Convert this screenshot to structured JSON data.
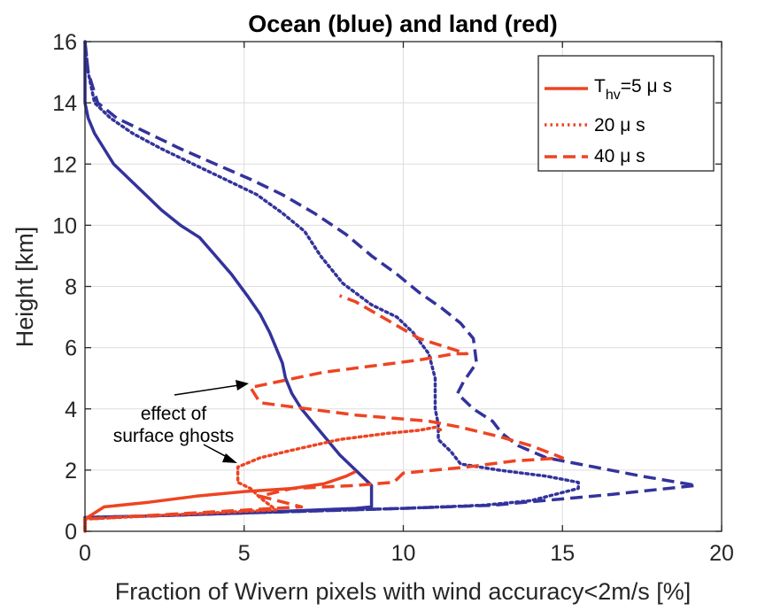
{
  "chart_data": {
    "type": "line",
    "title": "Ocean (blue) and land (red)",
    "xlabel": "Fraction of Wivern pixels with wind accuracy<2m/s [%]",
    "ylabel": "Height [km]",
    "xlim": [
      0,
      20
    ],
    "ylim": [
      0,
      16
    ],
    "xticks": [
      0,
      5,
      10,
      15,
      20
    ],
    "yticks": [
      0,
      2,
      4,
      6,
      8,
      10,
      12,
      14,
      16
    ],
    "xtick_labels": [
      "0",
      "5",
      "10",
      "15",
      "20"
    ],
    "ytick_labels": [
      "0",
      "2",
      "4",
      "6",
      "8",
      "10",
      "12",
      "14",
      "16"
    ],
    "grid": true,
    "legend": {
      "placement": "top-right",
      "entries": [
        {
          "label_main": "T",
          "label_sub": "hv",
          "label_rest": "=5 μ s",
          "style": "solid"
        },
        {
          "label": "20 μ s",
          "style": "dotted"
        },
        {
          "label": "40 μ s",
          "style": "dashed"
        }
      ]
    },
    "annotation": {
      "lines": [
        "effect of",
        "surface ghosts"
      ]
    },
    "colors": {
      "ocean": "#33339c",
      "land": "#ee4422"
    },
    "series": [
      {
        "surface": "ocean",
        "style": "solid",
        "points": [
          [
            0,
            16
          ],
          [
            0,
            15
          ],
          [
            0,
            14
          ],
          [
            0.1,
            13.5
          ],
          [
            0.3,
            13
          ],
          [
            0.6,
            12.5
          ],
          [
            0.9,
            12
          ],
          [
            1.4,
            11.5
          ],
          [
            1.9,
            11
          ],
          [
            2.4,
            10.5
          ],
          [
            3,
            10
          ],
          [
            3.6,
            9.6
          ],
          [
            4.1,
            9
          ],
          [
            4.6,
            8.4
          ],
          [
            5.1,
            7.7
          ],
          [
            5.5,
            7.1
          ],
          [
            5.8,
            6.5
          ],
          [
            6,
            6
          ],
          [
            6.2,
            5.5
          ],
          [
            6.3,
            5
          ],
          [
            6.5,
            4.5
          ],
          [
            6.8,
            4
          ],
          [
            7.2,
            3.5
          ],
          [
            7.6,
            3
          ],
          [
            8,
            2.5
          ],
          [
            8.5,
            2
          ],
          [
            8.9,
            1.6
          ],
          [
            9,
            1.5
          ],
          [
            9,
            1.2
          ],
          [
            9,
            0.8
          ],
          [
            8.5,
            0.75
          ],
          [
            5,
            0.6
          ],
          [
            2,
            0.5
          ],
          [
            0,
            0.45
          ],
          [
            0,
            0
          ]
        ]
      },
      {
        "surface": "ocean",
        "style": "dotted",
        "points": [
          [
            0,
            16
          ],
          [
            0.1,
            15
          ],
          [
            0.3,
            14
          ],
          [
            0.8,
            13.5
          ],
          [
            1.5,
            13
          ],
          [
            2.4,
            12.5
          ],
          [
            3.4,
            12
          ],
          [
            4.4,
            11.5
          ],
          [
            5.4,
            11
          ],
          [
            6.2,
            10.4
          ],
          [
            6.9,
            9.8
          ],
          [
            7.4,
            9
          ],
          [
            8.1,
            8.1
          ],
          [
            9,
            7.4
          ],
          [
            9.8,
            7
          ],
          [
            10.3,
            6.5
          ],
          [
            10.8,
            5.8
          ],
          [
            11,
            5
          ],
          [
            11,
            4
          ],
          [
            11.1,
            3.5
          ],
          [
            11.1,
            3
          ],
          [
            11.5,
            2.6
          ],
          [
            11.8,
            2.2
          ],
          [
            13,
            2
          ],
          [
            14.5,
            1.8
          ],
          [
            15.5,
            1.6
          ],
          [
            15.5,
            1.4
          ],
          [
            14,
            1
          ],
          [
            12.5,
            0.85
          ],
          [
            10,
            0.75
          ],
          [
            5,
            0.6
          ],
          [
            2,
            0.5
          ],
          [
            0,
            0.45
          ],
          [
            0,
            0
          ]
        ]
      },
      {
        "surface": "ocean",
        "style": "dashed",
        "points": [
          [
            0,
            16
          ],
          [
            0.1,
            15
          ],
          [
            0.4,
            14
          ],
          [
            1,
            13.5
          ],
          [
            2,
            13
          ],
          [
            3,
            12.5
          ],
          [
            4.1,
            12
          ],
          [
            5.2,
            11.5
          ],
          [
            6.2,
            11
          ],
          [
            7.2,
            10.4
          ],
          [
            8.2,
            9.7
          ],
          [
            9,
            9
          ],
          [
            9.8,
            8.4
          ],
          [
            10.5,
            7.8
          ],
          [
            11.2,
            7.3
          ],
          [
            11.8,
            6.8
          ],
          [
            12.2,
            6.3
          ],
          [
            12.3,
            5.5
          ],
          [
            11.9,
            4.9
          ],
          [
            11.7,
            4.5
          ],
          [
            12.2,
            4
          ],
          [
            12.8,
            3.6
          ],
          [
            13.1,
            3.2
          ],
          [
            13.6,
            2.8
          ],
          [
            14.5,
            2.4
          ],
          [
            16,
            2.1
          ],
          [
            17.5,
            1.8
          ],
          [
            19.2,
            1.5
          ],
          [
            16.5,
            1.2
          ],
          [
            12.8,
            0.85
          ],
          [
            10,
            0.75
          ],
          [
            5,
            0.6
          ],
          [
            2,
            0.5
          ],
          [
            0,
            0.45
          ],
          [
            0,
            0
          ]
        ]
      },
      {
        "surface": "land",
        "style": "solid",
        "points": [
          [
            0,
            0
          ],
          [
            0,
            0.4
          ],
          [
            0.6,
            0.8
          ],
          [
            2,
            0.95
          ],
          [
            3.5,
            1.15
          ],
          [
            5,
            1.3
          ],
          [
            6.5,
            1.4
          ],
          [
            7.5,
            1.55
          ],
          [
            8.2,
            1.8
          ],
          [
            8.5,
            1.95
          ]
        ]
      },
      {
        "surface": "land",
        "style": "dotted",
        "points": [
          [
            0,
            0
          ],
          [
            0,
            0.4
          ],
          [
            6,
            0.7
          ],
          [
            5.5,
            1.1
          ],
          [
            5.2,
            1.4
          ],
          [
            4.8,
            1.6
          ],
          [
            4.8,
            2.1
          ],
          [
            5.5,
            2.4
          ],
          [
            6.5,
            2.65
          ],
          [
            8,
            3
          ],
          [
            9.5,
            3.2
          ],
          [
            10.5,
            3.3
          ],
          [
            11,
            3.4
          ],
          [
            11.2,
            3.3
          ]
        ]
      },
      {
        "surface": "land",
        "style": "dashed",
        "points": [
          [
            0,
            0
          ],
          [
            0,
            0.4
          ],
          [
            6.8,
            0.8
          ],
          [
            5.5,
            1.15
          ],
          [
            6.5,
            1.4
          ],
          [
            8.5,
            1.5
          ],
          [
            9.7,
            1.6
          ],
          [
            10,
            1.9
          ],
          [
            12,
            2.1
          ],
          [
            13.5,
            2.3
          ],
          [
            15,
            2.4
          ],
          [
            14,
            2.8
          ],
          [
            13,
            3.1
          ],
          [
            11.8,
            3.4
          ],
          [
            10.8,
            3.6
          ],
          [
            8.5,
            3.8
          ],
          [
            5.5,
            4.2
          ],
          [
            5.2,
            4.7
          ],
          [
            7.5,
            5.2
          ],
          [
            10.5,
            5.6
          ],
          [
            11.6,
            5.8
          ],
          [
            12,
            5.8
          ],
          [
            10.5,
            6.3
          ],
          [
            9,
            7.2
          ],
          [
            8.5,
            7.5
          ],
          [
            8,
            7.7
          ]
        ]
      }
    ]
  }
}
